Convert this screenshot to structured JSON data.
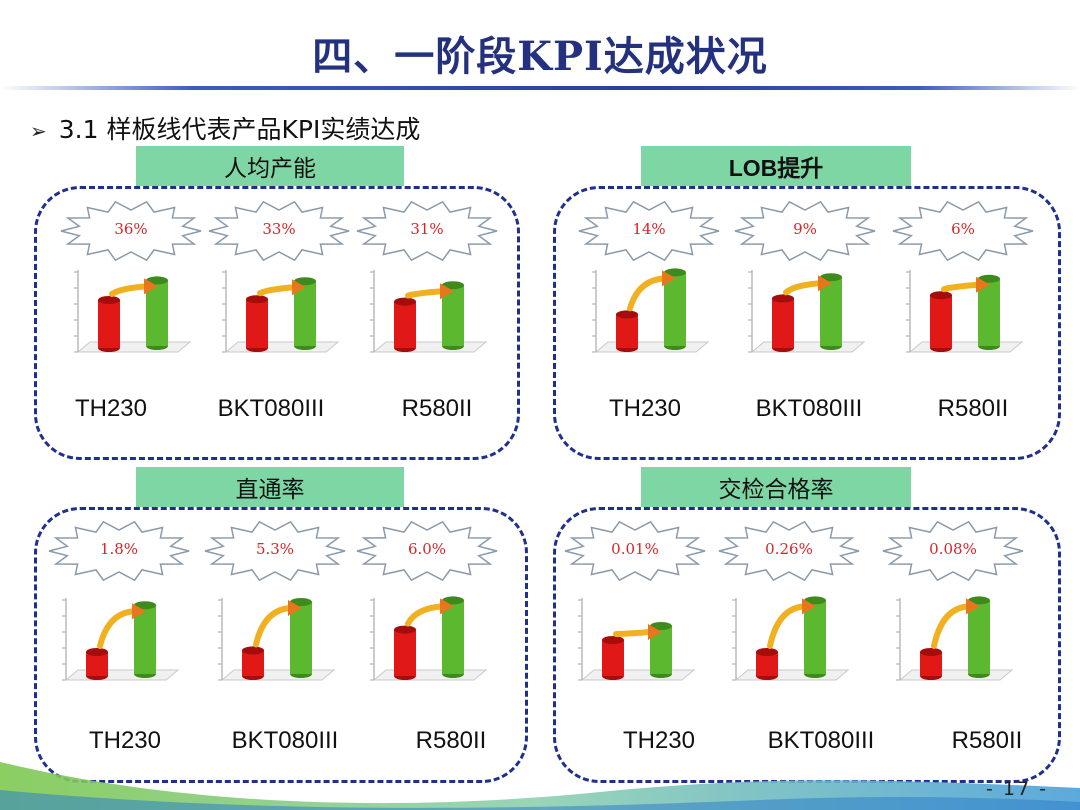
{
  "slide": {
    "title": "四、一阶段KPI达成状况",
    "subtitle": "3.1 样板线代表产品KPI实绩达成",
    "page_number": "- 17 -"
  },
  "colors": {
    "before_bar": "#e01818",
    "after_bar": "#5cb82e",
    "label_bg": "#7dd6a4",
    "border": "#1f2f8f"
  },
  "groups": [
    {
      "label": "人均产能",
      "items": [
        {
          "improvement": "36%",
          "product": "TH230",
          "before": 0.6,
          "after": 0.82
        },
        {
          "improvement": "33%",
          "product": "BKT080III",
          "before": 0.61,
          "after": 0.81
        },
        {
          "improvement": "31%",
          "product": "R580II",
          "before": 0.58,
          "after": 0.76
        }
      ]
    },
    {
      "label": "LOB提升",
      "items": [
        {
          "improvement": "14%",
          "product": "TH230",
          "before": 0.42,
          "after": 0.92
        },
        {
          "improvement": "9%",
          "product": "BKT080III",
          "before": 0.62,
          "after": 0.86
        },
        {
          "improvement": "6%",
          "product": "R580II",
          "before": 0.66,
          "after": 0.84
        }
      ]
    },
    {
      "label": "直通率",
      "items": [
        {
          "improvement": "1.8%",
          "product": "TH230",
          "before": 0.3,
          "after": 0.86
        },
        {
          "improvement": "5.3%",
          "product": "BKT080III",
          "before": 0.32,
          "after": 0.9
        },
        {
          "improvement": "6.0%",
          "product": "R580II",
          "before": 0.58,
          "after": 0.92
        }
      ]
    },
    {
      "label": "交检合格率",
      "items": [
        {
          "improvement": "0.01%",
          "product": "TH230",
          "before": 0.45,
          "after": 0.6
        },
        {
          "improvement": "0.26%",
          "product": "BKT080III",
          "before": 0.3,
          "after": 0.92
        },
        {
          "improvement": "0.08%",
          "product": "R580II",
          "before": 0.3,
          "after": 0.92
        }
      ]
    }
  ]
}
